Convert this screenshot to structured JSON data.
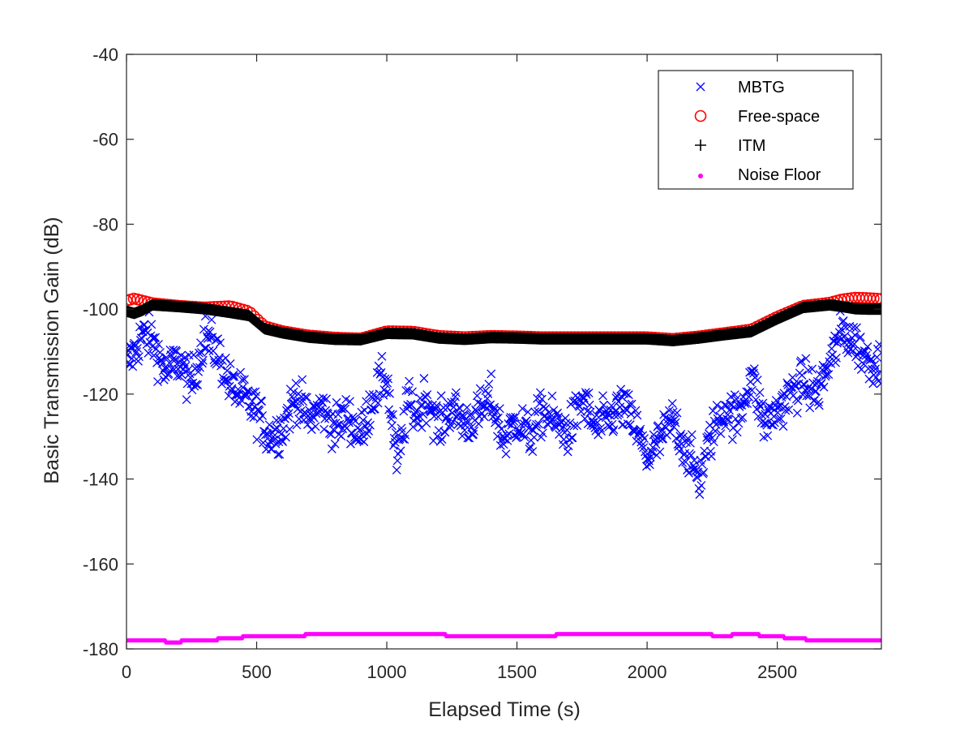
{
  "chart_data": {
    "type": "scatter",
    "title": "",
    "xlabel": "Elapsed Time (s)",
    "ylabel": "Basic Transmission Gain (dB)",
    "xlim": [
      0,
      2900
    ],
    "ylim": [
      -180,
      -40
    ],
    "xticks": [
      0,
      500,
      1000,
      1500,
      2000,
      2500
    ],
    "yticks": [
      -40,
      -60,
      -80,
      -100,
      -120,
      -140,
      -160,
      -180
    ],
    "xtick_labels": [
      "0",
      "500",
      "1000",
      "1500",
      "2000",
      "2500"
    ],
    "ytick_labels": [
      "-40",
      "-60",
      "-80",
      "-100",
      "-120",
      "-140",
      "-160",
      "-180"
    ],
    "legend_position": "top-right",
    "series": [
      {
        "name": "MBTG",
        "marker": "x",
        "color": "#0000ff",
        "trend_x": [
          0,
          30,
          60,
          100,
          150,
          200,
          250,
          300,
          350,
          400,
          450,
          500,
          550,
          600,
          650,
          700,
          750,
          800,
          850,
          900,
          950,
          1000,
          1040,
          1080,
          1120,
          1150,
          1200,
          1250,
          1300,
          1350,
          1400,
          1450,
          1500,
          1550,
          1600,
          1650,
          1700,
          1750,
          1800,
          1850,
          1900,
          1950,
          2000,
          2050,
          2100,
          2150,
          2200,
          2250,
          2300,
          2350,
          2400,
          2450,
          2500,
          2550,
          2600,
          2650,
          2700,
          2750,
          2800,
          2850,
          2900
        ],
        "trend_y": [
          -113,
          -110,
          -106,
          -107,
          -115,
          -112,
          -118,
          -106,
          -110,
          -118,
          -121,
          -124,
          -130,
          -128,
          -120,
          -126,
          -123,
          -128,
          -125,
          -130,
          -120,
          -116,
          -137,
          -122,
          -125,
          -120,
          -128,
          -123,
          -127,
          -125,
          -121,
          -131,
          -126,
          -130,
          -124,
          -127,
          -129,
          -121,
          -128,
          -126,
          -123,
          -127,
          -135,
          -131,
          -126,
          -133,
          -140,
          -129,
          -123,
          -126,
          -115,
          -127,
          -124,
          -120,
          -117,
          -120,
          -113,
          -105,
          -108,
          -112,
          -113
        ],
        "spread_db": 4.5,
        "step_s": 3,
        "range_y": [
          -145,
          -100
        ]
      },
      {
        "name": "Free-space",
        "marker": "o",
        "color": "#ff0000",
        "x": [
          0,
          30,
          60,
          100,
          200,
          300,
          400,
          470,
          530,
          600,
          700,
          800,
          900,
          1000,
          1100,
          1200,
          1300,
          1400,
          1500,
          1600,
          1700,
          1800,
          1900,
          2000,
          2100,
          2200,
          2300,
          2400,
          2500,
          2600,
          2700,
          2750,
          2800,
          2850,
          2900
        ],
        "y": [
          -98,
          -97.5,
          -98,
          -98.6,
          -99.2,
          -99.6,
          -99.3,
          -100.5,
          -104,
          -105.2,
          -106.2,
          -106.7,
          -106.9,
          -105.2,
          -105.3,
          -106.3,
          -106.6,
          -106.3,
          -106.4,
          -106.6,
          -106.6,
          -106.6,
          -106.6,
          -106.6,
          -107,
          -106.4,
          -105.6,
          -104.8,
          -101.8,
          -99.2,
          -98.5,
          -97.7,
          -97.3,
          -97.4,
          -97.6
        ],
        "step_s": 14
      },
      {
        "name": "ITM",
        "marker": "+",
        "color": "#000000",
        "x": [
          0,
          30,
          60,
          100,
          200,
          300,
          400,
          470,
          530,
          600,
          700,
          800,
          900,
          1000,
          1100,
          1200,
          1300,
          1400,
          1500,
          1600,
          1700,
          1800,
          1900,
          2000,
          2100,
          2200,
          2300,
          2400,
          2500,
          2600,
          2700,
          2750,
          2800,
          2850,
          2900
        ],
        "y": [
          -100.5,
          -101,
          -100.3,
          -99,
          -99.4,
          -99.9,
          -100.8,
          -101.5,
          -104.6,
          -105.6,
          -106.6,
          -107.1,
          -107.2,
          -105.7,
          -105.8,
          -106.8,
          -107.1,
          -106.7,
          -106.8,
          -107,
          -107,
          -107,
          -107,
          -107,
          -107.4,
          -106.8,
          -106,
          -105.3,
          -102.3,
          -99.6,
          -99,
          -99.4,
          -99.9,
          -100,
          -100
        ],
        "step_s": 3
      },
      {
        "name": "Noise Floor",
        "marker": ".",
        "color": "#ff00ff",
        "x": [
          0,
          100,
          200,
          300,
          400,
          450,
          500,
          600,
          700,
          800,
          900,
          1000,
          1100,
          1200,
          1300,
          1400,
          1500,
          1600,
          1700,
          1800,
          1900,
          2000,
          2100,
          2200,
          2300,
          2400,
          2500,
          2600,
          2700,
          2800,
          2900
        ],
        "y": [
          -178,
          -178.2,
          -178.3,
          -177.8,
          -177.7,
          -177.2,
          -176.9,
          -177.1,
          -176.7,
          -176.5,
          -176.6,
          -176.6,
          -176.6,
          -176.7,
          -176.9,
          -176.9,
          -176.8,
          -176.8,
          -176.7,
          -176.6,
          -176.5,
          -176.4,
          -176.6,
          -176.7,
          -176.8,
          -176.6,
          -177.1,
          -177.7,
          -178.2,
          -178.1,
          -178
        ],
        "step_s": 4
      }
    ]
  }
}
